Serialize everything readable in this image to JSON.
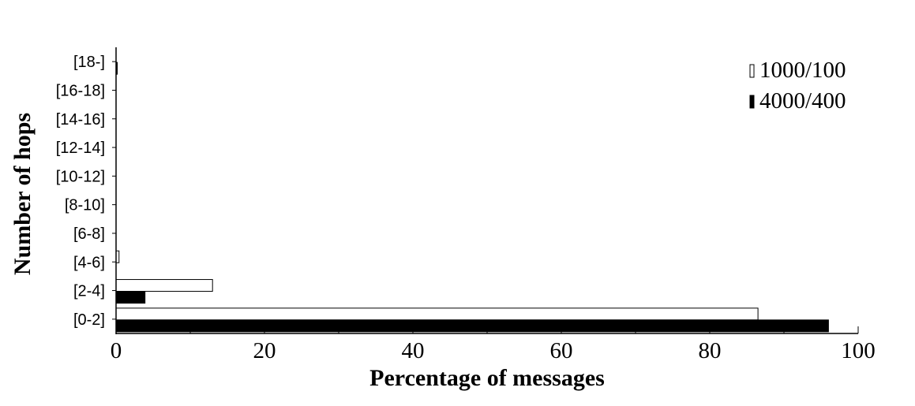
{
  "chart_data": {
    "type": "bar",
    "orientation": "horizontal",
    "categories": [
      "[0-2]",
      "[2-4]",
      "[4-6]",
      "[6-8]",
      "[8-10]",
      "[10-12]",
      "[12-14]",
      "[14-16]",
      "[16-18]",
      "[18-]"
    ],
    "series": [
      {
        "name": "1000/100",
        "color": "#ffffff",
        "values": [
          86.5,
          13.0,
          0.4,
          0,
          0,
          0,
          0,
          0,
          0,
          0
        ]
      },
      {
        "name": "4000/400",
        "color": "#000000",
        "values": [
          96.0,
          3.9,
          0,
          0,
          0,
          0,
          0,
          0,
          0,
          0.1
        ]
      }
    ],
    "xlabel": "Percentage of messages",
    "ylabel": "Number of hops",
    "xlim": [
      0,
      100
    ],
    "xticks": [
      "0",
      "20",
      "40",
      "60",
      "80",
      "100"
    ],
    "legend_position": "top-right",
    "grid": false
  }
}
